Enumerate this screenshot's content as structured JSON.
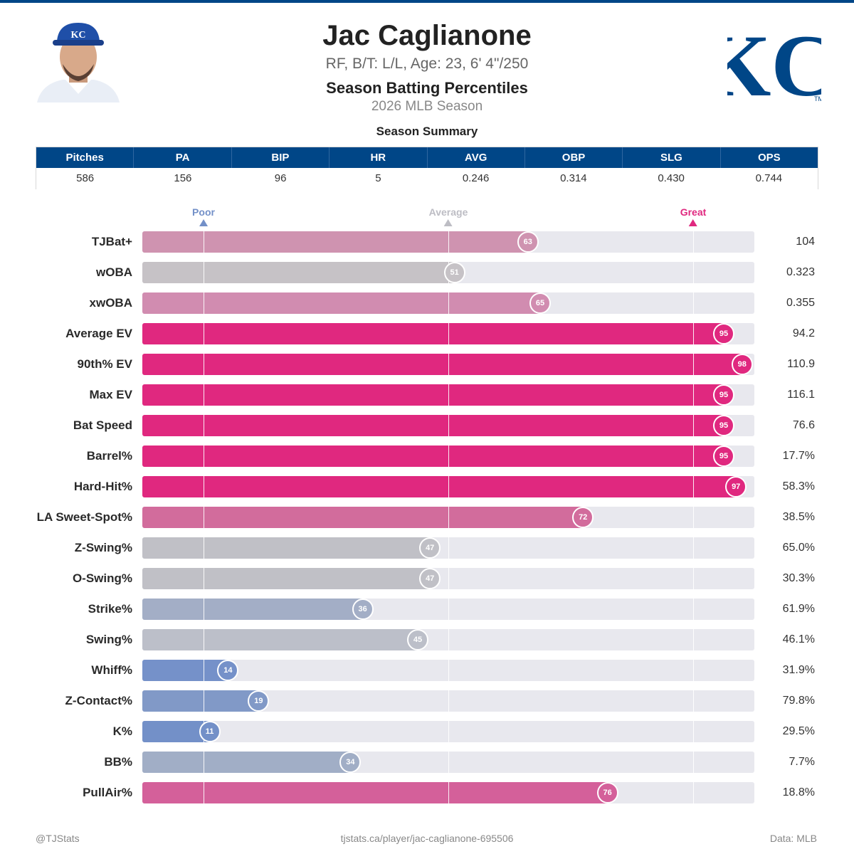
{
  "header": {
    "name": "Jac Caglianone",
    "bio": "RF, B/T: L/L, Age: 23, 6' 4\"/250",
    "subtitle": "Season Batting Percentiles",
    "season": "2026 MLB Season",
    "team_logo_text": "KC",
    "colors": {
      "team_primary": "#004687",
      "great": "#e0287f",
      "poor": "#7390c8",
      "average": "#c4c4cc"
    }
  },
  "summary": {
    "title": "Season Summary",
    "columns": [
      "Pitches",
      "PA",
      "BIP",
      "HR",
      "AVG",
      "OBP",
      "SLG",
      "OPS"
    ],
    "values": [
      "586",
      "156",
      "96",
      "5",
      "0.246",
      "0.314",
      "0.430",
      "0.744"
    ]
  },
  "legend": {
    "poor": "Poor",
    "average": "Average",
    "great": "Great"
  },
  "chart_data": {
    "type": "bar",
    "orientation": "horizontal",
    "xlim": [
      0,
      100
    ],
    "reference_lines": [
      10,
      50,
      90
    ],
    "categories": [
      "TJBat+",
      "wOBA",
      "xwOBA",
      "Average EV",
      "90th% EV",
      "Max EV",
      "Bat Speed",
      "Barrel%",
      "Hard-Hit%",
      "LA Sweet-Spot%",
      "Z-Swing%",
      "O-Swing%",
      "Strike%",
      "Swing%",
      "Whiff%",
      "Z-Contact%",
      "K%",
      "BB%",
      "PullAir%"
    ],
    "percentiles": [
      63,
      51,
      65,
      95,
      98,
      95,
      95,
      95,
      97,
      72,
      47,
      47,
      36,
      45,
      14,
      19,
      11,
      34,
      76
    ],
    "values": [
      "104",
      "0.323",
      "0.355",
      "94.2",
      "110.9",
      "116.1",
      "76.6",
      "17.7%",
      "58.3%",
      "38.5%",
      "65.0%",
      "30.3%",
      "61.9%",
      "46.1%",
      "31.9%",
      "79.8%",
      "29.5%",
      "7.7%",
      "18.8%"
    ],
    "colors": [
      "#cf93b0",
      "#c6c2c6",
      "#d18cb0",
      "#e0287f",
      "#e0287f",
      "#e0287f",
      "#e0287f",
      "#e0287f",
      "#e0287f",
      "#d26c9c",
      "#c0c0c6",
      "#c0c0c6",
      "#a3aec6",
      "#bcbfc9",
      "#7591c9",
      "#8199c7",
      "#7390c8",
      "#a1aec6",
      "#d4609a"
    ]
  },
  "footer": {
    "left": "@TJStats",
    "center": "tjstats.ca/player/jac-caglianone-695506",
    "right": "Data: MLB"
  }
}
